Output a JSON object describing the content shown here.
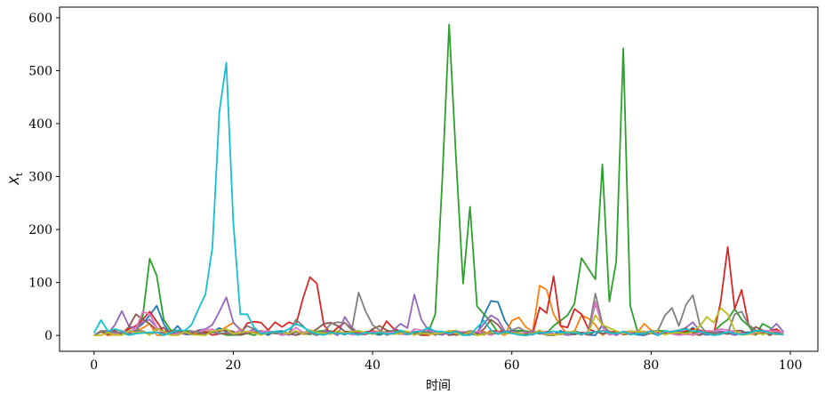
{
  "chart_data": {
    "type": "line",
    "title": "",
    "xlabel": "时间",
    "ylabel": "X_t",
    "xlim": [
      -4.95,
      103.95
    ],
    "ylim": [
      -30,
      620
    ],
    "x_ticks": [
      0,
      20,
      40,
      60,
      80,
      100
    ],
    "y_ticks": [
      0,
      100,
      200,
      300,
      400,
      500,
      600
    ],
    "grid": false,
    "legend": "none",
    "x": [
      0,
      1,
      2,
      3,
      4,
      5,
      6,
      7,
      8,
      9,
      10,
      11,
      12,
      13,
      14,
      15,
      16,
      17,
      18,
      19,
      20,
      21,
      22,
      23,
      24,
      25,
      26,
      27,
      28,
      29,
      30,
      31,
      32,
      33,
      34,
      35,
      36,
      37,
      38,
      39,
      40,
      41,
      42,
      43,
      44,
      45,
      46,
      47,
      48,
      49,
      50,
      51,
      52,
      53,
      54,
      55,
      56,
      57,
      58,
      59,
      60,
      61,
      62,
      63,
      64,
      65,
      66,
      67,
      68,
      69,
      70,
      71,
      72,
      73,
      74,
      75,
      76,
      77,
      78,
      79,
      80,
      81,
      82,
      83,
      84,
      85,
      86,
      87,
      88,
      89,
      90,
      91,
      92,
      93,
      94,
      95,
      96,
      97,
      98,
      99
    ],
    "series": [
      {
        "color": "#1f77b4",
        "spikes": {
          "6": 12,
          "7": 22,
          "8": 38,
          "9": 56,
          "10": 22,
          "12": 18,
          "18": 14,
          "31": 10,
          "47": 8,
          "56": 38,
          "57": 65,
          "58": 63,
          "59": 28,
          "73": 20,
          "86": 15
        }
      },
      {
        "color": "#ff7f0e",
        "spikes": {
          "7": 14,
          "8": 22,
          "19": 16,
          "20": 24,
          "21": 12,
          "46": 8,
          "60": 28,
          "61": 34,
          "62": 16,
          "64": 94,
          "65": 86,
          "66": 40,
          "67": 18,
          "70": 38,
          "71": 32,
          "72": 20,
          "79": 22,
          "80": 10
        }
      },
      {
        "color": "#2ca02c",
        "spikes": {
          "7": 36,
          "8": 145,
          "9": 113,
          "10": 30,
          "11": 10,
          "49": 40,
          "50": 290,
          "51": 587,
          "52": 330,
          "53": 98,
          "54": 243,
          "55": 55,
          "56": 40,
          "57": 25,
          "64": 3,
          "65": 4,
          "66": 18,
          "67": 28,
          "68": 38,
          "69": 60,
          "70": 146,
          "71": 126,
          "72": 106,
          "73": 323,
          "74": 64,
          "75": 140,
          "76": 542,
          "77": 56,
          "78": 10,
          "90": 20,
          "91": 30,
          "92": 50,
          "93": 30,
          "94": 18,
          "96": 22,
          "97": 15
        }
      },
      {
        "color": "#d62728",
        "spikes": {
          "5": 12,
          "6": 18,
          "7": 30,
          "8": 45,
          "9": 26,
          "22": 23,
          "23": 26,
          "24": 24,
          "25": 10,
          "26": 25,
          "27": 16,
          "28": 25,
          "29": 20,
          "30": 70,
          "31": 110,
          "32": 98,
          "33": 20,
          "35": 15,
          "36": 24,
          "37": 12,
          "42": 27,
          "43": 13,
          "64": 53,
          "65": 42,
          "66": 112,
          "67": 18,
          "68": 15,
          "69": 50,
          "70": 40,
          "71": 12,
          "86": 12,
          "87": 10,
          "90": 64,
          "91": 167,
          "92": 50,
          "93": 86,
          "94": 20,
          "95": 10,
          "98": 12
        }
      },
      {
        "color": "#9467bd",
        "spikes": {
          "3": 20,
          "4": 46,
          "5": 18,
          "6": 12,
          "7": 25,
          "8": 30,
          "9": 15,
          "15": 10,
          "16": 12,
          "17": 20,
          "18": 45,
          "19": 72,
          "20": 25,
          "21": 10,
          "23": 12,
          "36": 35,
          "37": 15,
          "43": 10,
          "44": 22,
          "45": 14,
          "46": 77,
          "47": 30,
          "48": 10,
          "56": 22,
          "57": 38,
          "58": 30,
          "72": 60,
          "73": 20,
          "85": 15,
          "86": 25,
          "98": 22
        }
      },
      {
        "color": "#8c564b",
        "spikes": {
          "5": 16,
          "6": 40,
          "7": 30,
          "8": 22,
          "9": 10,
          "10": 15,
          "19": 10,
          "32": 12,
          "33": 22,
          "34": 24,
          "35": 18,
          "40": 12,
          "41": 18,
          "42": 10,
          "56": 12,
          "57": 30,
          "58": 20,
          "84": 10,
          "85": 14,
          "95": 16,
          "96": 10
        }
      },
      {
        "color": "#e377c2",
        "spikes": {
          "6": 12,
          "7": 45,
          "8": 40,
          "9": 15,
          "16": 10,
          "17": 12,
          "21": 10,
          "29": 15,
          "46": 12,
          "47": 10,
          "71": 8,
          "72": 64,
          "73": 15,
          "90": 12,
          "91": 10
        }
      },
      {
        "color": "#7f7f7f",
        "spikes": {
          "22": 18,
          "23": 12,
          "29": 30,
          "30": 18,
          "34": 22,
          "35": 25,
          "36": 24,
          "37": 10,
          "38": 81,
          "39": 45,
          "40": 20,
          "41": 10,
          "60": 10,
          "61": 15,
          "72": 79,
          "73": 22,
          "81": 10,
          "82": 38,
          "83": 52,
          "84": 18,
          "85": 58,
          "86": 76,
          "87": 20,
          "92": 40,
          "93": 45,
          "94": 20
        }
      },
      {
        "color": "#bcbd22",
        "spikes": {
          "9": 12,
          "10": 8,
          "18": 10,
          "19": 12,
          "31": 10,
          "38": 8,
          "64": 10,
          "72": 38,
          "73": 20,
          "74": 14,
          "87": 18,
          "88": 35,
          "89": 24,
          "90": 52,
          "91": 40,
          "92": 10
        }
      },
      {
        "color": "#17becf",
        "spikes": {
          "0": 5,
          "1": 29,
          "2": 8,
          "3": 12,
          "4": 8,
          "12": 10,
          "14": 20,
          "15": 50,
          "16": 78,
          "17": 166,
          "18": 423,
          "19": 515,
          "20": 215,
          "21": 40,
          "22": 40,
          "23": 15,
          "28": 12,
          "29": 22,
          "30": 16,
          "44": 10,
          "48": 15,
          "55": 15,
          "56": 28,
          "57": 10,
          "66": 8,
          "84": 10,
          "85": 12,
          "86": 8
        }
      }
    ]
  }
}
